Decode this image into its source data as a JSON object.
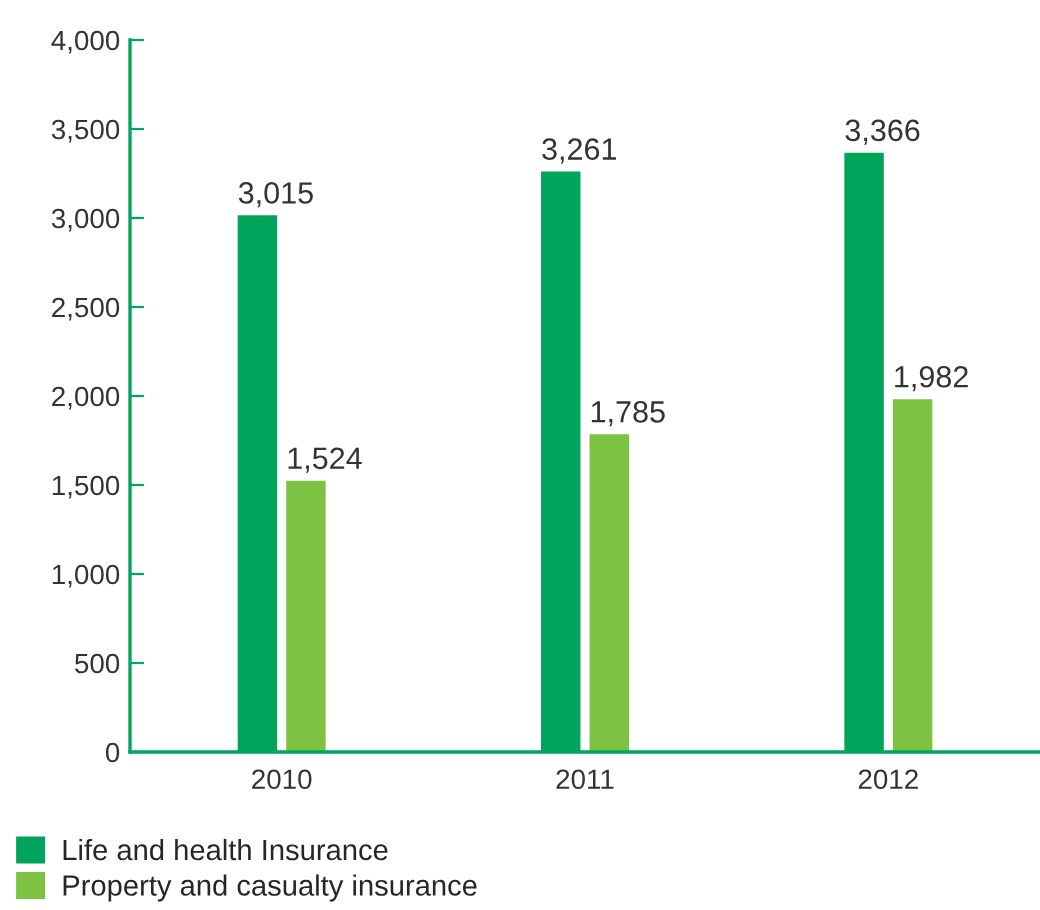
{
  "chart_data": {
    "type": "bar",
    "categories": [
      "2010",
      "2011",
      "2012"
    ],
    "series": [
      {
        "name": "Life and health Insurance",
        "color": "#00a45a",
        "values": [
          3015,
          3261,
          3366
        ],
        "value_labels": [
          "3,015",
          "3,261",
          "3,366"
        ]
      },
      {
        "name": "Property and casualty insurance",
        "color": "#7dc242",
        "values": [
          1524,
          1785,
          1982
        ],
        "value_labels": [
          "1,524",
          "1,785",
          "1,982"
        ]
      }
    ],
    "ylim": [
      0,
      4000
    ],
    "yticks": [
      {
        "value": 0,
        "label": "0"
      },
      {
        "value": 500,
        "label": "500"
      },
      {
        "value": 1000,
        "label": "1,000"
      },
      {
        "value": 1500,
        "label": "1,500"
      },
      {
        "value": 2000,
        "label": "2,000"
      },
      {
        "value": 2500,
        "label": "2,500"
      },
      {
        "value": 3000,
        "label": "3,000"
      },
      {
        "value": 3500,
        "label": "3,500"
      },
      {
        "value": 4000,
        "label": "4,000"
      }
    ],
    "grid": false,
    "legend": "bottom left"
  }
}
